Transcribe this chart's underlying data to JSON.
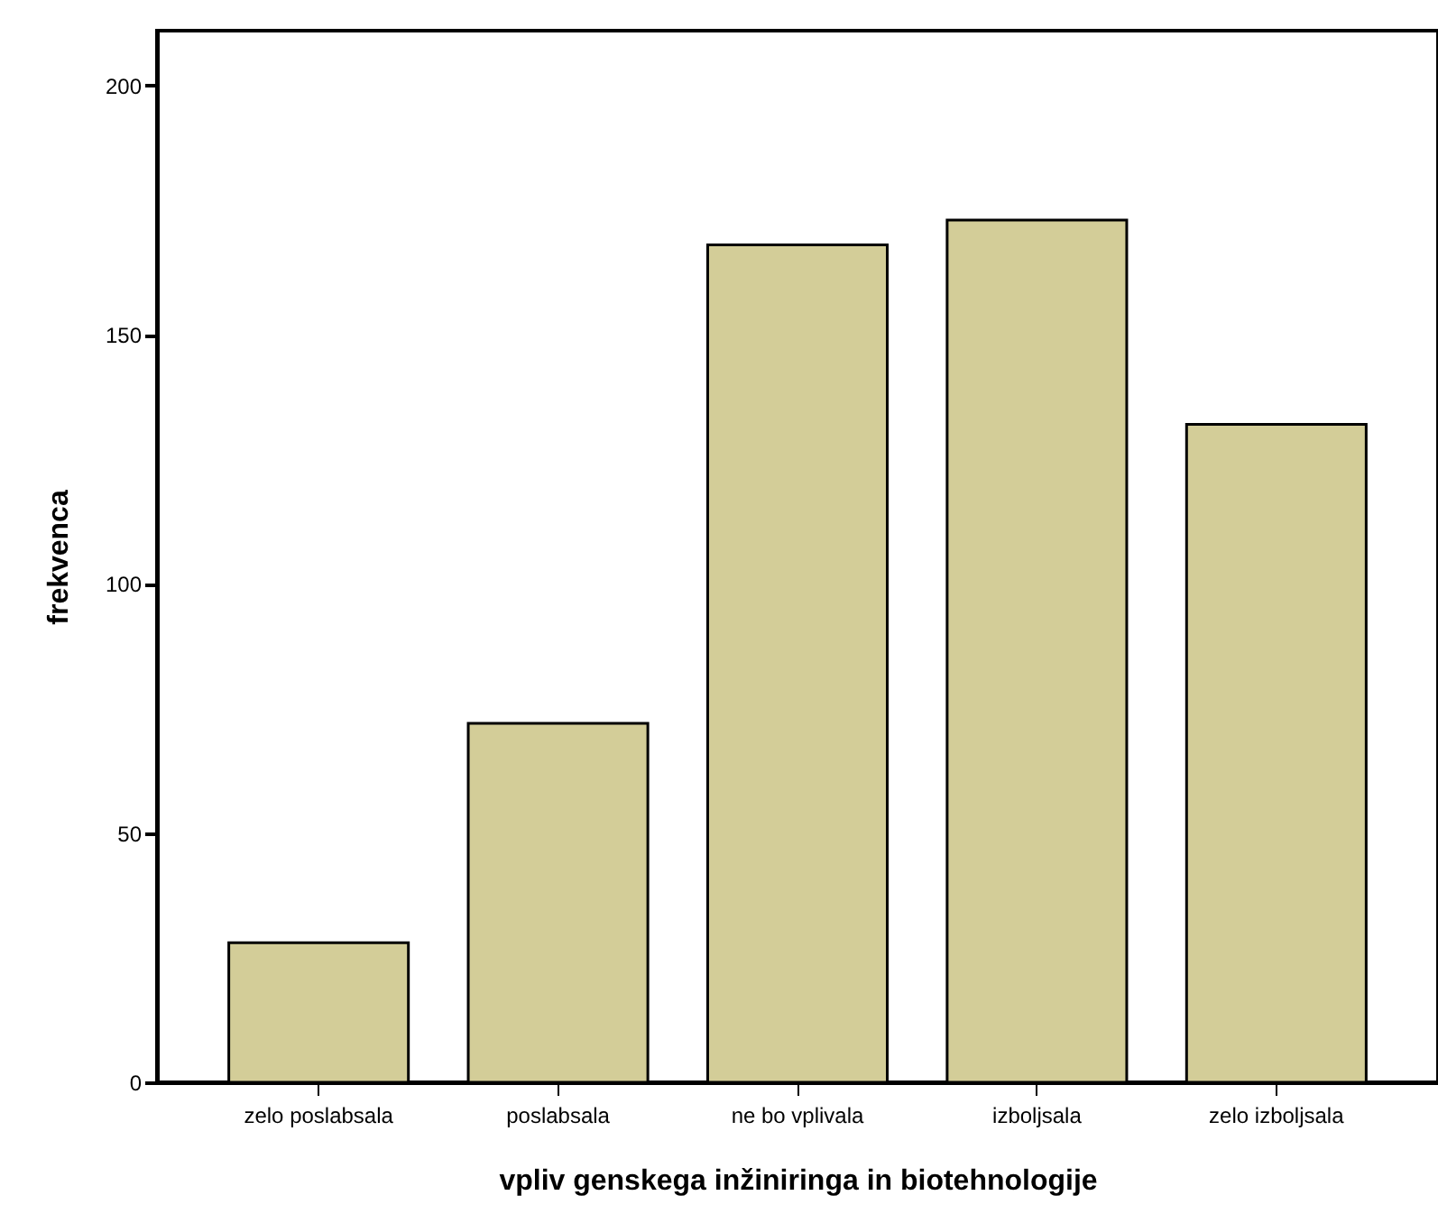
{
  "chart_data": {
    "type": "bar",
    "xlabel": "vpliv genskega inžiniringa in biotehnologije",
    "ylabel": "frekvenca",
    "categories": [
      "zelo poslabsala",
      "poslabsala",
      "ne bo vplivala",
      "izboljsala",
      "zelo izboljsala"
    ],
    "values": [
      28,
      72,
      168,
      173,
      132
    ],
    "color": "#d3cd98",
    "ylim": [
      0,
      211
    ],
    "yticks": [
      0,
      50,
      100,
      150,
      200
    ],
    "grid": false
  }
}
